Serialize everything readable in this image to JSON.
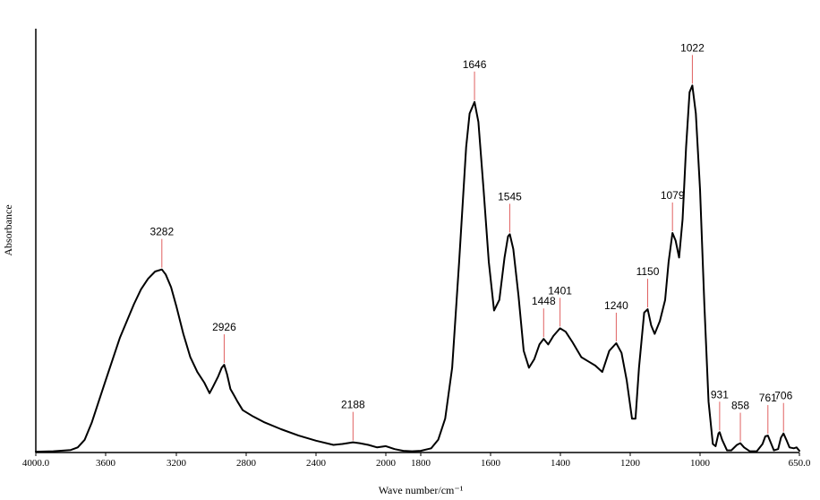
{
  "chart_data": {
    "type": "line",
    "title": "",
    "xlabel": "Wave number/cm⁻¹",
    "ylabel": "Absorbance",
    "xlim": [
      4000,
      650
    ],
    "x_reversed": true,
    "ylim": [
      0,
      1.0
    ],
    "grid": false,
    "y_ticks_shown": false,
    "x_tick_labels": [
      "4000.0",
      "3600",
      "3200",
      "2800",
      "2400",
      "2000",
      "1800",
      "1600",
      "1400",
      "1200",
      "1000",
      "650.0"
    ],
    "x_tick_values": [
      4000,
      3600,
      3200,
      2800,
      2400,
      2000,
      1800,
      1600,
      1400,
      1200,
      1000,
      650
    ],
    "series": [
      {
        "line_color": "#000000",
        "points": [
          [
            4000,
            0.002
          ],
          [
            3900,
            0.003
          ],
          [
            3800,
            0.006
          ],
          [
            3760,
            0.012
          ],
          [
            3720,
            0.03
          ],
          [
            3680,
            0.07
          ],
          [
            3640,
            0.12
          ],
          [
            3600,
            0.17
          ],
          [
            3560,
            0.22
          ],
          [
            3520,
            0.27
          ],
          [
            3480,
            0.31
          ],
          [
            3440,
            0.35
          ],
          [
            3400,
            0.385
          ],
          [
            3360,
            0.41
          ],
          [
            3320,
            0.427
          ],
          [
            3282,
            0.432
          ],
          [
            3260,
            0.42
          ],
          [
            3230,
            0.39
          ],
          [
            3200,
            0.345
          ],
          [
            3160,
            0.28
          ],
          [
            3120,
            0.225
          ],
          [
            3080,
            0.19
          ],
          [
            3040,
            0.165
          ],
          [
            3010,
            0.14
          ],
          [
            2990,
            0.155
          ],
          [
            2960,
            0.18
          ],
          [
            2940,
            0.2
          ],
          [
            2926,
            0.207
          ],
          [
            2910,
            0.185
          ],
          [
            2890,
            0.15
          ],
          [
            2870,
            0.135
          ],
          [
            2850,
            0.12
          ],
          [
            2820,
            0.1
          ],
          [
            2760,
            0.085
          ],
          [
            2700,
            0.072
          ],
          [
            2600,
            0.055
          ],
          [
            2500,
            0.04
          ],
          [
            2400,
            0.028
          ],
          [
            2300,
            0.018
          ],
          [
            2250,
            0.02
          ],
          [
            2188,
            0.024
          ],
          [
            2150,
            0.022
          ],
          [
            2100,
            0.018
          ],
          [
            2050,
            0.012
          ],
          [
            2000,
            0.015
          ],
          [
            1950,
            0.008
          ],
          [
            1900,
            0.004
          ],
          [
            1850,
            0.003
          ],
          [
            1800,
            0.004
          ],
          [
            1770,
            0.01
          ],
          [
            1750,
            0.03
          ],
          [
            1730,
            0.08
          ],
          [
            1710,
            0.2
          ],
          [
            1690,
            0.45
          ],
          [
            1670,
            0.72
          ],
          [
            1660,
            0.8
          ],
          [
            1646,
            0.827
          ],
          [
            1635,
            0.78
          ],
          [
            1620,
            0.62
          ],
          [
            1605,
            0.45
          ],
          [
            1590,
            0.335
          ],
          [
            1575,
            0.36
          ],
          [
            1560,
            0.46
          ],
          [
            1550,
            0.51
          ],
          [
            1545,
            0.515
          ],
          [
            1535,
            0.48
          ],
          [
            1520,
            0.37
          ],
          [
            1505,
            0.24
          ],
          [
            1490,
            0.2
          ],
          [
            1475,
            0.22
          ],
          [
            1460,
            0.255
          ],
          [
            1448,
            0.268
          ],
          [
            1435,
            0.255
          ],
          [
            1420,
            0.275
          ],
          [
            1401,
            0.293
          ],
          [
            1385,
            0.285
          ],
          [
            1365,
            0.26
          ],
          [
            1340,
            0.225
          ],
          [
            1320,
            0.215
          ],
          [
            1300,
            0.205
          ],
          [
            1280,
            0.19
          ],
          [
            1260,
            0.24
          ],
          [
            1240,
            0.258
          ],
          [
            1225,
            0.235
          ],
          [
            1210,
            0.17
          ],
          [
            1195,
            0.08
          ],
          [
            1185,
            0.08
          ],
          [
            1175,
            0.2
          ],
          [
            1160,
            0.33
          ],
          [
            1150,
            0.338
          ],
          [
            1140,
            0.3
          ],
          [
            1130,
            0.28
          ],
          [
            1115,
            0.31
          ],
          [
            1100,
            0.36
          ],
          [
            1090,
            0.45
          ],
          [
            1079,
            0.518
          ],
          [
            1070,
            0.5
          ],
          [
            1060,
            0.46
          ],
          [
            1050,
            0.55
          ],
          [
            1040,
            0.72
          ],
          [
            1030,
            0.85
          ],
          [
            1022,
            0.866
          ],
          [
            1012,
            0.8
          ],
          [
            1000,
            0.62
          ],
          [
            985,
            0.35
          ],
          [
            970,
            0.12
          ],
          [
            955,
            0.02
          ],
          [
            945,
            0.015
          ],
          [
            935,
            0.045
          ],
          [
            931,
            0.048
          ],
          [
            922,
            0.03
          ],
          [
            905,
            0.005
          ],
          [
            890,
            0.005
          ],
          [
            870,
            0.018
          ],
          [
            858,
            0.022
          ],
          [
            845,
            0.012
          ],
          [
            825,
            0.003
          ],
          [
            800,
            0.003
          ],
          [
            780,
            0.02
          ],
          [
            770,
            0.038
          ],
          [
            761,
            0.04
          ],
          [
            752,
            0.025
          ],
          [
            740,
            0.005
          ],
          [
            725,
            0.008
          ],
          [
            715,
            0.035
          ],
          [
            706,
            0.045
          ],
          [
            696,
            0.03
          ],
          [
            685,
            0.012
          ],
          [
            670,
            0.01
          ],
          [
            660,
            0.012
          ],
          [
            650,
            0.004
          ]
        ]
      }
    ],
    "peak_annotations": [
      {
        "x": 3282,
        "label": "3282"
      },
      {
        "x": 2926,
        "label": "2926"
      },
      {
        "x": 2188,
        "label": "2188"
      },
      {
        "x": 1646,
        "label": "1646"
      },
      {
        "x": 1545,
        "label": "1545"
      },
      {
        "x": 1448,
        "label": "1448"
      },
      {
        "x": 1401,
        "label": "1401"
      },
      {
        "x": 1240,
        "label": "1240"
      },
      {
        "x": 1150,
        "label": "1150"
      },
      {
        "x": 1079,
        "label": "1079"
      },
      {
        "x": 1022,
        "label": "1022"
      },
      {
        "x": 931,
        "label": "931"
      },
      {
        "x": 858,
        "label": "858"
      },
      {
        "x": 761,
        "label": "761"
      },
      {
        "x": 706,
        "label": "706"
      }
    ],
    "colors": {
      "spectrum": "#000000",
      "peak_marker": "#e06060",
      "axes": "#000000"
    }
  }
}
